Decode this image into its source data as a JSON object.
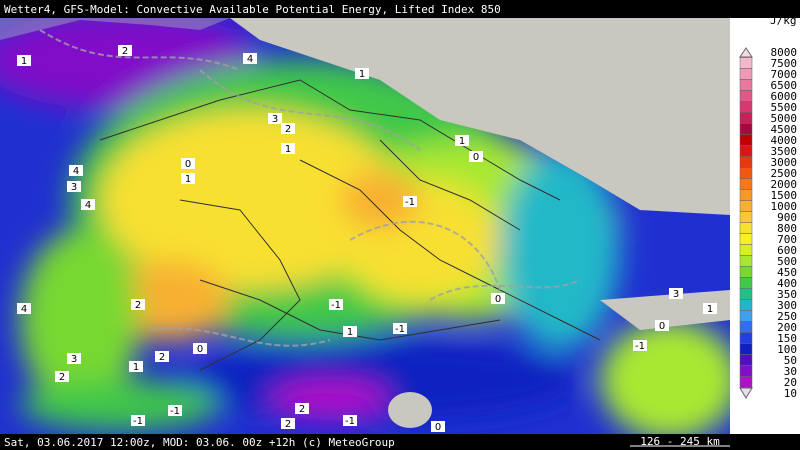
{
  "header": {
    "title": "Wetter4, GFS-Model: Convective Available Potential Energy, Lifted Index 850"
  },
  "footer": {
    "text": "Sat, 03.06.2017 12:00z, MOD: 03.06. 00z +12h (c) MeteoGroup",
    "scale": "126 - 245 km"
  },
  "legend": {
    "unit": "J/kg",
    "levels": [
      8000,
      7500,
      7000,
      6500,
      6000,
      5500,
      5000,
      4500,
      4000,
      3500,
      3000,
      2500,
      2000,
      1500,
      1000,
      900,
      800,
      700,
      600,
      500,
      450,
      400,
      350,
      300,
      250,
      200,
      150,
      100,
      50,
      30,
      20,
      10
    ],
    "colors": [
      "#f8d8e8",
      "#f4b8cc",
      "#f098b4",
      "#e8789c",
      "#e05888",
      "#d83870",
      "#c82058",
      "#a80840",
      "#c00000",
      "#d81810",
      "#e83810",
      "#f05810",
      "#f87818",
      "#f89828",
      "#f8b030",
      "#f8c838",
      "#f8e030",
      "#f8f020",
      "#d8f020",
      "#a8e830",
      "#78d830",
      "#40c848",
      "#20c088",
      "#20b8c8",
      "#40a0f0",
      "#3070f0",
      "#2040e0",
      "#1020c0",
      "#5010c0",
      "#8010c8",
      "#b010c8",
      "#e8e0f0"
    ]
  },
  "map": {
    "labels": [
      "2",
      "1",
      "4",
      "1",
      "3",
      "2",
      "1",
      "0",
      "1",
      "1",
      "0",
      "4",
      "3",
      "4",
      "-1",
      "4",
      "2",
      "2",
      "3",
      "1",
      "0",
      "-1",
      "0",
      "-1",
      "2",
      "3",
      "1",
      "0",
      "-1",
      "-1",
      "-1",
      "-1",
      "2",
      "0",
      "1",
      "2"
    ]
  }
}
